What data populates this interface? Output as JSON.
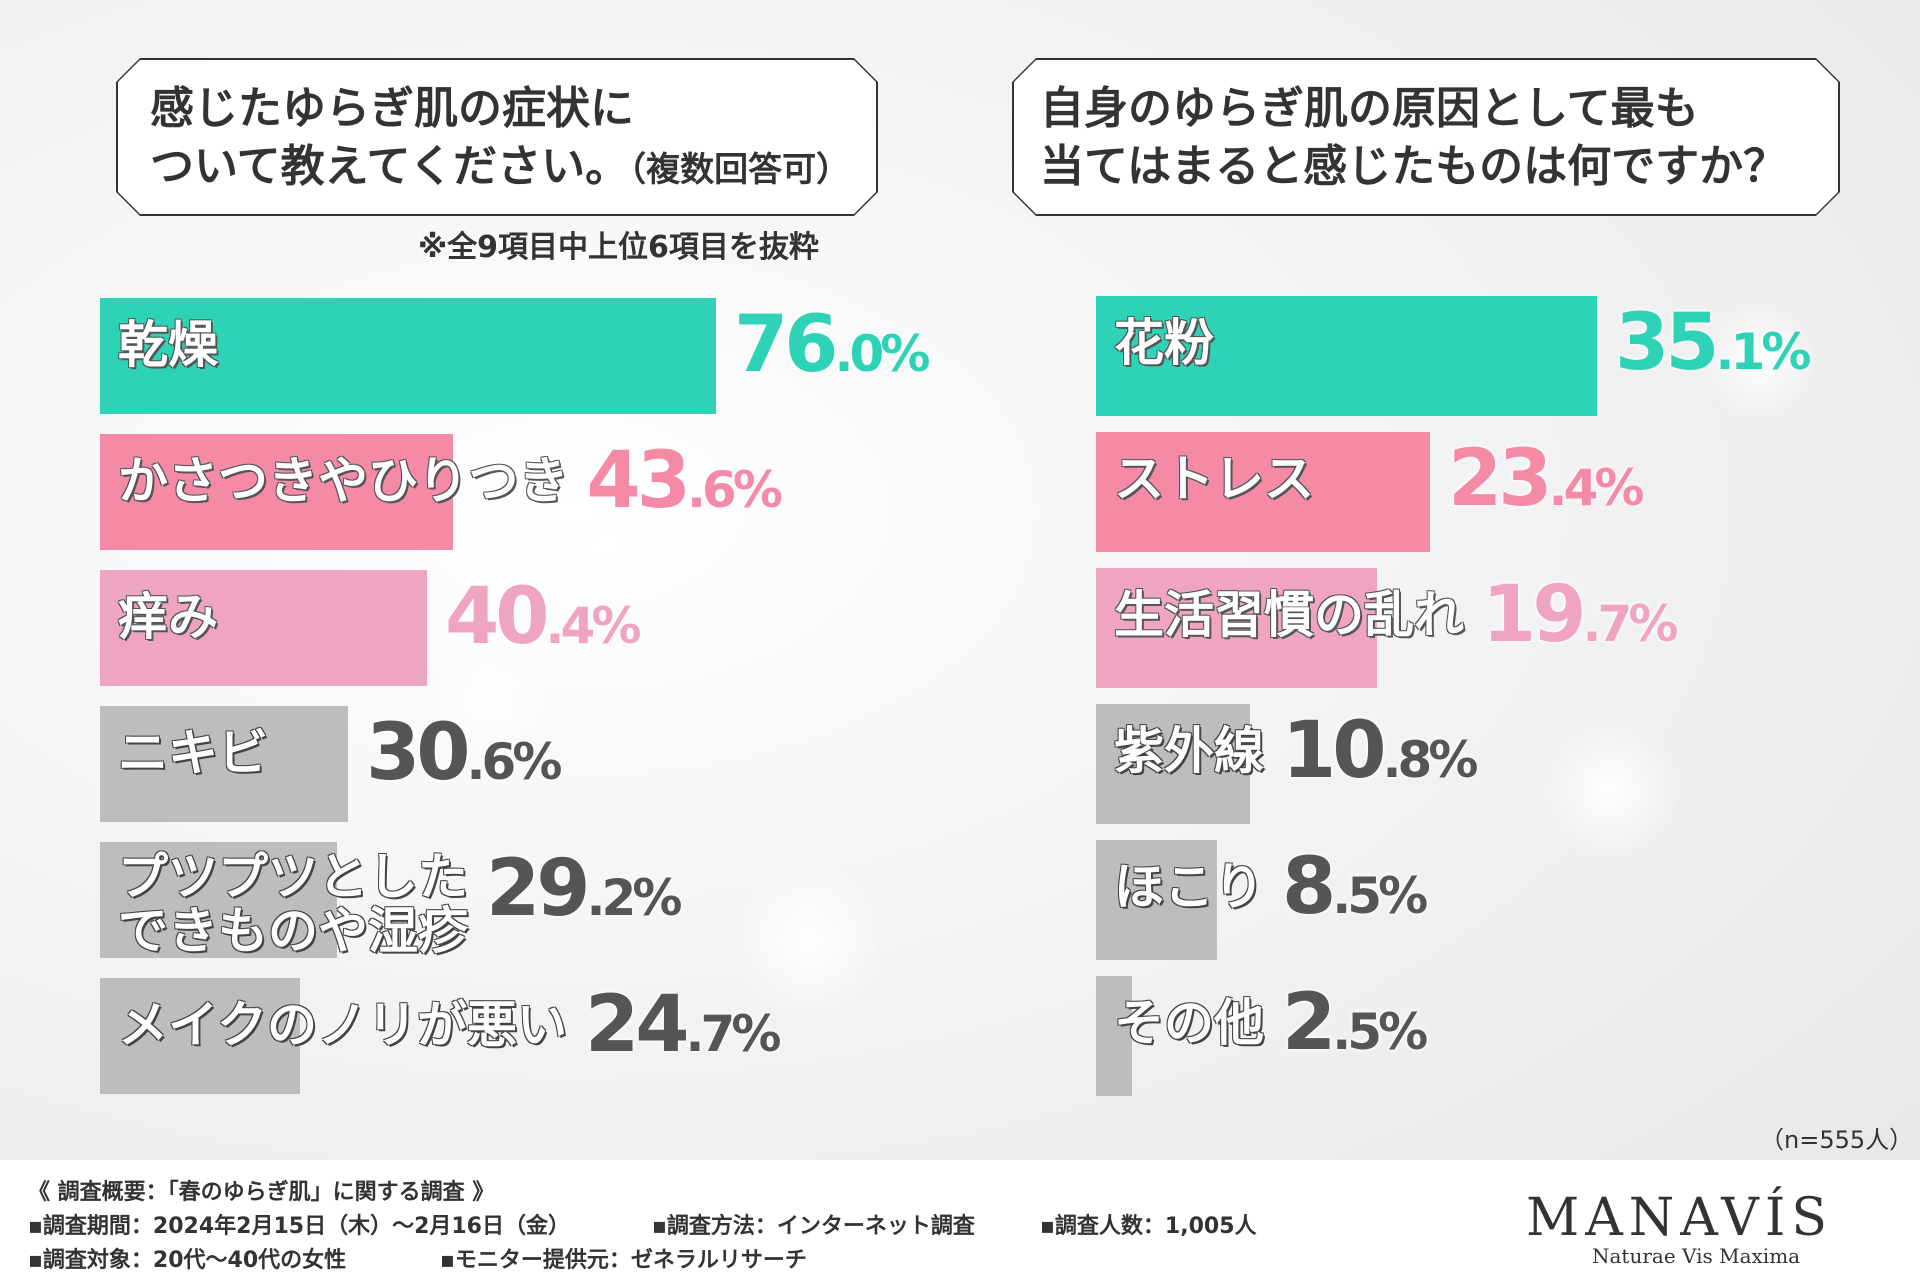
{
  "left": {
    "question": "感じたゆらぎ肌の症状に\nついて教えてください。",
    "question_suffix": "（複数回答可）",
    "note": "※全9項目中上位6項目を抜粋"
  },
  "right": {
    "question": "自身のゆらぎ肌の原因として最も\n当てはまると感じたものは何ですか？"
  },
  "chart_data": [
    {
      "type": "bar",
      "orientation": "horizontal",
      "title": "感じたゆらぎ肌の症状について教えてください。（複数回答可）",
      "categories": [
        "乾燥",
        "かさつきやひりつき",
        "痒み",
        "ニキビ",
        "プツプツとした\nできものや湿疹",
        "メイクのノリが悪い"
      ],
      "values": [
        76.0,
        43.6,
        40.4,
        30.6,
        29.2,
        24.7
      ],
      "value_labels": [
        [
          "76",
          ".0%"
        ],
        [
          "43",
          ".6%"
        ],
        [
          "40",
          ".4%"
        ],
        [
          "30",
          ".6%"
        ],
        [
          "29",
          ".2%"
        ],
        [
          "24",
          ".7%"
        ]
      ],
      "colors": [
        "#2ed3b7",
        "#f48aa6",
        "#efa5c2",
        "#bdbdbd",
        "#bdbdbd",
        "#bdbdbd"
      ],
      "value_colors": [
        "#2ed3b7",
        "#f48aa6",
        "#efa5c2",
        "#555555",
        "#555555",
        "#555555"
      ],
      "xlim": [
        0,
        100
      ]
    },
    {
      "type": "bar",
      "orientation": "horizontal",
      "title": "自身のゆらぎ肌の原因として最も当てはまると感じたものは何ですか？",
      "categories": [
        "花粉",
        "ストレス",
        "生活習慣の乱れ",
        "紫外線",
        "ほこり",
        "その他"
      ],
      "values": [
        35.1,
        23.4,
        19.7,
        10.8,
        8.5,
        2.5
      ],
      "value_labels": [
        [
          "35",
          ".1%"
        ],
        [
          "23",
          ".4%"
        ],
        [
          "19",
          ".7%"
        ],
        [
          "10",
          ".8%"
        ],
        [
          "8",
          ".5%"
        ],
        [
          "2",
          ".5%"
        ]
      ],
      "colors": [
        "#2ed3b7",
        "#f48aa6",
        "#efa5c2",
        "#bdbdbd",
        "#bdbdbd",
        "#bdbdbd"
      ],
      "value_colors": [
        "#2ed3b7",
        "#f48aa6",
        "#efa5c2",
        "#555555",
        "#555555",
        "#555555"
      ],
      "xlim": [
        0,
        50
      ]
    }
  ],
  "n_note": "（n=555人）",
  "footer": {
    "summary": "《 調査概要：「春のゆらぎ肌」に関する調査 》",
    "period": "▪調査期間：2024年2月15日（木）～2月16日（金）",
    "method": "▪調査方法：インターネット調査",
    "count": "▪調査人数：1,005人",
    "target": "▪調査対象：20代～40代の女性",
    "provider": "▪モニター提供元：ゼネラルリサーチ"
  },
  "brand": {
    "name": "MANAVÍS",
    "tagline": "Naturae Vis Maxima"
  }
}
